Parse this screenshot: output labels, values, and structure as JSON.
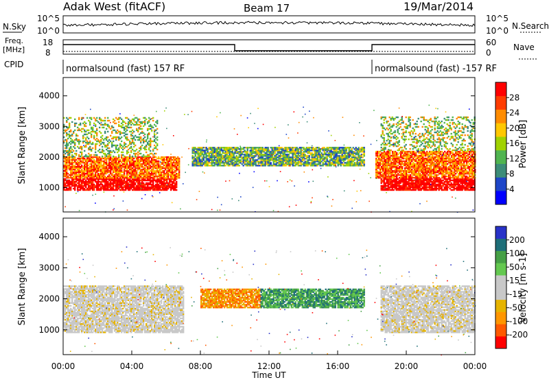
{
  "header": {
    "station": "Adak West (fitACF)",
    "beam": "Beam 17",
    "date": "19/Mar/2014"
  },
  "sky_panel": {
    "left_label": "N.Sky",
    "right_label": "N.Search",
    "left_ticks": [
      "10^5",
      "10^0"
    ],
    "right_ticks": [
      "10^5",
      "10^0"
    ]
  },
  "freq_panel": {
    "left_label_1": "Freq.",
    "left_label_2": "[MHz]",
    "right_label": "Nave",
    "left_ticks": [
      "18",
      "8"
    ],
    "right_ticks": [
      "60",
      "0"
    ]
  },
  "cpid_panel": {
    "label": "CPID",
    "segments": [
      {
        "text": "normalsound (fast) 157 RF"
      },
      {
        "text": "normalsound (fast) -157 RF"
      }
    ]
  },
  "chart_data": [
    {
      "type": "heatmap",
      "name": "power",
      "ylabel": "Slant Range [km]",
      "ylim": [
        200,
        4600
      ],
      "yticks": [
        "1000",
        "2000",
        "3000",
        "4000"
      ],
      "xlim": [
        "00:00",
        "24:00"
      ],
      "colorbar": {
        "label": "Power [dB]",
        "tick_labels": [
          "4",
          "8",
          "12",
          "16",
          "20",
          "24",
          "28"
        ],
        "range": [
          0,
          32
        ],
        "colors": [
          "#0000ff",
          "#1e46c8",
          "#3c8c78",
          "#50b450",
          "#a0d200",
          "#ffc800",
          "#ff8c00",
          "#ff3c00",
          "#ff0000"
        ]
      },
      "bands": [
        {
          "t0": 0.0,
          "t1": 6.6,
          "r0": 900,
          "r1": 1300,
          "level": "high"
        },
        {
          "t0": 0.0,
          "t1": 6.8,
          "r0": 1300,
          "r1": 2000,
          "level": "mid"
        },
        {
          "t0": 0.0,
          "t1": 5.5,
          "r0": 2000,
          "r1": 3300,
          "level": "low"
        },
        {
          "t0": 7.5,
          "t1": 17.5,
          "r0": 1700,
          "r1": 2300,
          "level": "green"
        },
        {
          "t0": 18.5,
          "t1": 24.0,
          "r0": 900,
          "r1": 1300,
          "level": "high"
        },
        {
          "t0": 18.2,
          "t1": 24.0,
          "r0": 1300,
          "r1": 2200,
          "level": "mid"
        },
        {
          "t0": 18.5,
          "t1": 24.0,
          "r0": 2200,
          "r1": 3300,
          "level": "low"
        }
      ]
    },
    {
      "type": "heatmap",
      "name": "velocity",
      "ylabel": "Slant Range [km]",
      "ylim": [
        200,
        4600
      ],
      "yticks": [
        "1000",
        "2000",
        "3000",
        "4000"
      ],
      "xlim": [
        "00:00",
        "24:00"
      ],
      "xticks": [
        "00:00",
        "04:00",
        "08:00",
        "12:00",
        "16:00",
        "20:00",
        "00:00"
      ],
      "xlabel": "Time UT",
      "colorbar": {
        "label": "Velocity [m s-1]",
        "tick_labels": [
          "-200",
          "-100",
          "-50",
          "-15",
          "15",
          "50",
          "100",
          "200"
        ],
        "colors": [
          "#ff0000",
          "#ff5a00",
          "#ff9600",
          "#e6b400",
          "#c8c8c8",
          "#c8c8c8",
          "#64c850",
          "#46a046",
          "#1e6e78",
          "#2832c8"
        ]
      },
      "bands": [
        {
          "t0": 0.0,
          "t1": 7.0,
          "r0": 900,
          "r1": 2400,
          "level": "grey"
        },
        {
          "t0": 8.0,
          "t1": 11.5,
          "r0": 1700,
          "r1": 2300,
          "level": "orange"
        },
        {
          "t0": 11.5,
          "t1": 17.5,
          "r0": 1700,
          "r1": 2300,
          "level": "green"
        },
        {
          "t0": 18.5,
          "t1": 24.0,
          "r0": 900,
          "r1": 2400,
          "level": "grey"
        }
      ]
    }
  ]
}
